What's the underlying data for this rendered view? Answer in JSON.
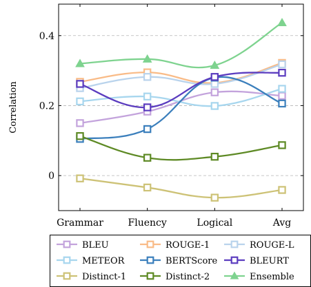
{
  "chart_data": {
    "type": "line",
    "categories": [
      "Grammar",
      "Fluency",
      "Logical",
      "Avg"
    ],
    "ylabel": "Correlation",
    "ylim": [
      -0.1,
      0.49
    ],
    "yticks": [
      0,
      0.2,
      0.4
    ],
    "ytick_labels": [
      "0",
      "0.2",
      "0.4"
    ],
    "grid": "horizontal dashed",
    "legend_position": "bottom, 3 columns",
    "series": [
      {
        "name": "BLEU",
        "values": [
          0.15,
          0.183,
          0.238,
          0.228
        ],
        "color": "#c3a3dc",
        "marker": "square-open"
      },
      {
        "name": "ROUGE-1",
        "values": [
          0.268,
          0.295,
          0.265,
          0.322
        ],
        "color": "#f9bb87",
        "marker": "square-open"
      },
      {
        "name": "ROUGE-L",
        "values": [
          0.25,
          0.282,
          0.262,
          0.318
        ],
        "color": "#b9d3ec",
        "marker": "square-open"
      },
      {
        "name": "METEOR",
        "values": [
          0.212,
          0.226,
          0.199,
          0.248
        ],
        "color": "#a7d6ee",
        "marker": "square-open"
      },
      {
        "name": "BERTScore",
        "values": [
          0.105,
          0.133,
          0.28,
          0.206
        ],
        "color": "#3b7fbc",
        "marker": "square-open"
      },
      {
        "name": "BLEURT",
        "values": [
          0.262,
          0.195,
          0.282,
          0.294
        ],
        "color": "#5b3cbf",
        "marker": "square-open"
      },
      {
        "name": "Distinct-1",
        "values": [
          -0.008,
          -0.034,
          -0.063,
          -0.041
        ],
        "color": "#cdc276",
        "marker": "square-open"
      },
      {
        "name": "Distinct-2",
        "values": [
          0.113,
          0.051,
          0.054,
          0.087
        ],
        "color": "#5e8a25",
        "marker": "square-open"
      },
      {
        "name": "Ensemble",
        "values": [
          0.32,
          0.333,
          0.315,
          0.437
        ],
        "color": "#7ed38f",
        "marker": "triangle"
      }
    ]
  }
}
